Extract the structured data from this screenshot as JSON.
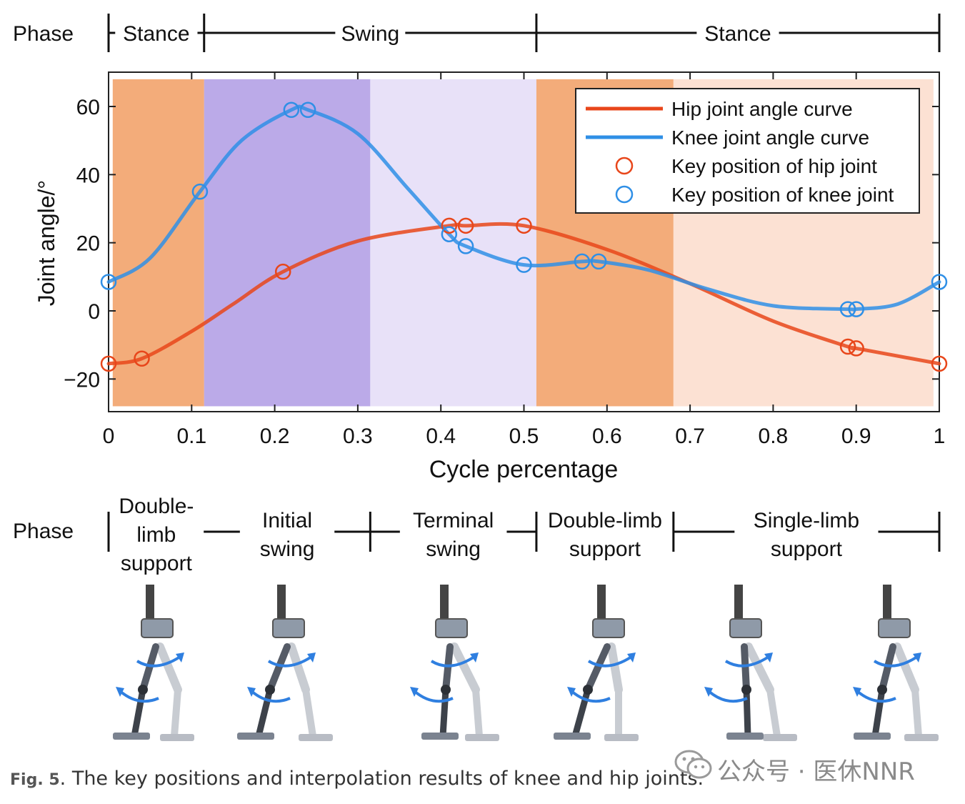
{
  "chart_data": {
    "type": "line",
    "xlabel": "Cycle percentage",
    "ylabel": "Joint angle/°",
    "xlim": [
      0,
      1
    ],
    "ylim": [
      -30,
      70
    ],
    "xticks": [
      "0",
      "0.1",
      "0.2",
      "0.3",
      "0.4",
      "0.5",
      "0.6",
      "0.7",
      "0.8",
      "0.9",
      "1"
    ],
    "yticks": [
      "60",
      "40",
      "20",
      "0",
      "−20"
    ],
    "grid": false,
    "legend_position": "top-right",
    "legend": [
      {
        "label": "Hip joint angle curve",
        "kind": "line",
        "color": "#e8461a"
      },
      {
        "label": "Knee joint angle curve",
        "kind": "line",
        "color": "#2f8fe6"
      },
      {
        "label": "Key position of hip joint",
        "kind": "marker",
        "color": "#e8461a"
      },
      {
        "label": "Key position of knee joint",
        "kind": "marker",
        "color": "#2f8fe6"
      }
    ],
    "series": [
      {
        "name": "Hip joint angle curve",
        "color": "#e8461a",
        "x": [
          0,
          0.04,
          0.1,
          0.15,
          0.21,
          0.3,
          0.41,
          0.43,
          0.5,
          0.6,
          0.7,
          0.8,
          0.89,
          0.9,
          1.0
        ],
        "y": [
          -15.5,
          -14,
          -6,
          2,
          11.5,
          20.5,
          25,
          25,
          25,
          18,
          8,
          -3,
          -10.5,
          -11,
          -15.5
        ]
      },
      {
        "name": "Knee joint angle curve",
        "color": "#2f8fe6",
        "x": [
          0,
          0.05,
          0.11,
          0.16,
          0.22,
          0.24,
          0.3,
          0.36,
          0.41,
          0.43,
          0.5,
          0.57,
          0.59,
          0.65,
          0.72,
          0.8,
          0.89,
          0.9,
          0.95,
          1.0
        ],
        "y": [
          8.5,
          15.5,
          35,
          50,
          59,
          59,
          52,
          36,
          22.5,
          19,
          13.5,
          14.5,
          14.5,
          12,
          6.5,
          1.5,
          0.5,
          0.5,
          2,
          8.5
        ]
      }
    ],
    "key_points": {
      "hip": {
        "x": [
          0,
          0.04,
          0.21,
          0.41,
          0.43,
          0.5,
          0.89,
          0.9,
          1.0
        ],
        "y": [
          -15.5,
          -14,
          11.5,
          25,
          25,
          25,
          -10.5,
          -11,
          -15.5
        ]
      },
      "knee": {
        "x": [
          0,
          0.11,
          0.22,
          0.24,
          0.41,
          0.43,
          0.5,
          0.57,
          0.59,
          0.89,
          0.9,
          1.0
        ],
        "y": [
          8.5,
          35,
          59,
          59,
          22.5,
          19,
          13.5,
          14.5,
          14.5,
          0.5,
          0.5,
          8.5
        ]
      }
    },
    "shaded_regions": [
      {
        "x0": 0.005,
        "x1": 0.115,
        "color": "#f2a36c",
        "opacity": 0.9
      },
      {
        "x0": 0.115,
        "x1": 0.315,
        "color": "#a48ee0",
        "opacity": 0.75
      },
      {
        "x0": 0.315,
        "x1": 0.515,
        "color": "#d9cdf3",
        "opacity": 0.6
      },
      {
        "x0": 0.515,
        "x1": 0.68,
        "color": "#f2a36c",
        "opacity": 0.9
      },
      {
        "x0": 0.68,
        "x1": 0.993,
        "color": "#fbd7c4",
        "opacity": 0.75
      }
    ]
  },
  "top_phase_bar": {
    "label": "Phase",
    "ticks": [
      0,
      0.115,
      0.515,
      1.0
    ],
    "segments": [
      {
        "label": "Stance",
        "x0": 0,
        "x1": 0.115
      },
      {
        "label": "Swing",
        "x0": 0.115,
        "x1": 0.515
      },
      {
        "label": "Stance",
        "x0": 0.515,
        "x1": 1.0
      }
    ]
  },
  "bottom_phase_bar": {
    "label": "Phase",
    "ticks": [
      0,
      0.315,
      0.515,
      0.68,
      1.0
    ],
    "segments": [
      {
        "lines": [
          "Double-",
          "limb",
          "support"
        ],
        "x0": 0,
        "x1": 0.115
      },
      {
        "lines": [
          "Initial",
          "swing"
        ],
        "x0": 0.115,
        "x1": 0.315
      },
      {
        "lines": [
          "Terminal",
          "swing"
        ],
        "x0": 0.315,
        "x1": 0.515
      },
      {
        "lines": [
          "Double-limb",
          "support"
        ],
        "x0": 0.515,
        "x1": 0.68
      },
      {
        "lines": [
          "Single-limb",
          "support"
        ],
        "x0": 0.68,
        "x1": 1.0
      }
    ]
  },
  "caption": {
    "fig_label": "Fig. 5",
    "text": ". The key positions and interpolation results of knee and hip joints."
  },
  "watermark": {
    "text": "公众号 · 医休NNR",
    "icon": "wechat-icon"
  },
  "exoskeleton_figures": {
    "count": 6,
    "icon": "exoskeleton-illustration",
    "arrow_color": "#2f7fe0"
  }
}
